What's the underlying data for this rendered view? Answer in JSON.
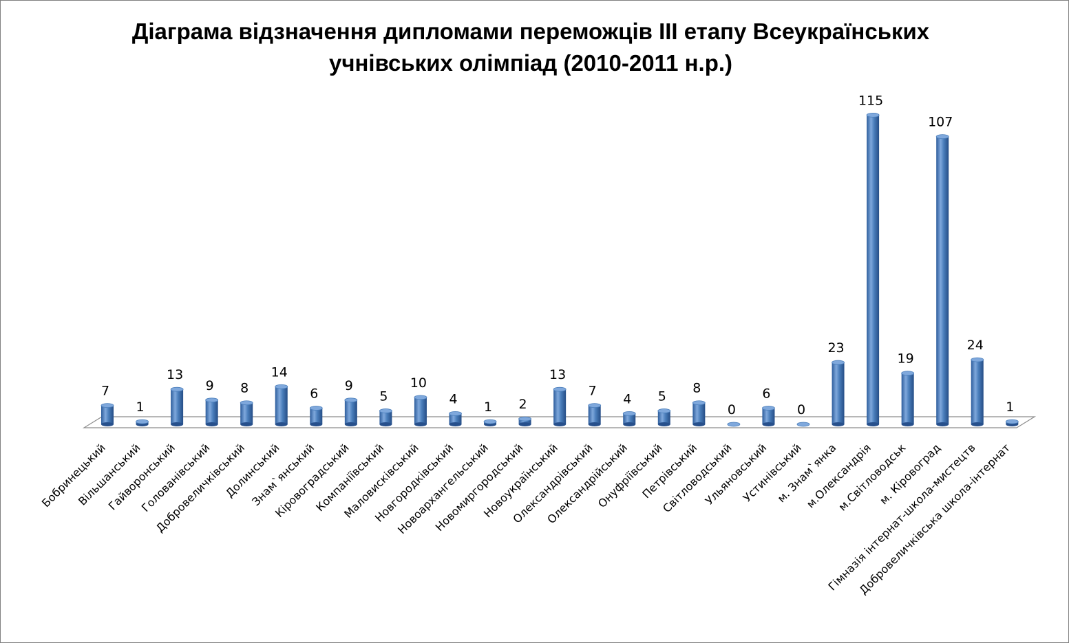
{
  "chart_data": {
    "type": "bar",
    "title_lines": [
      "Діаграма відзначення дипломами переможців ІІІ етапу Всеукраїнських",
      "учнівських олімпіад (2010-2011 н.р.)"
    ],
    "categories": [
      "Бобринецький",
      "Вільшанський",
      "Гайворонський",
      "Голованівський",
      "Добровеличківський",
      "Долинський",
      "Знам`янський",
      "Кіровоградський",
      "Компаніївський",
      "Маловисківський",
      "Новгородківський",
      "Новоархангельський",
      "Новомиргородський",
      "Новоукраїнський",
      "Олександрівський",
      "Олександрійський",
      "Онуфріївський",
      "Петрівський",
      "Світловодський",
      "Ульяновський",
      "Устинівський",
      "м. Знам`янка",
      "м.Олександрія",
      "м.Світловодськ",
      "м. Кіровоград",
      "Гімназія інтернат-школа-мистецтв",
      "Добровеличківська школа-інтернат"
    ],
    "values": [
      7,
      1,
      13,
      9,
      8,
      14,
      6,
      9,
      5,
      10,
      4,
      1,
      2,
      13,
      7,
      4,
      5,
      8,
      0,
      6,
      0,
      23,
      115,
      19,
      107,
      24,
      1
    ],
    "ylim": [
      0,
      115
    ],
    "grid": false,
    "legend": "none",
    "colors": {
      "bar": "#4a7ebb",
      "bar_dark": "#27508c",
      "bar_light": "#7fa8dc",
      "floor": "#7f7f7f"
    }
  }
}
